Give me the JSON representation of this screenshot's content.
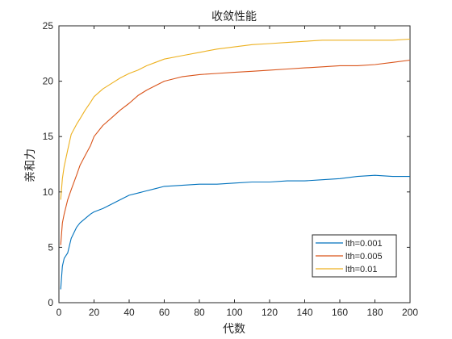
{
  "chart_data": {
    "type": "line",
    "title": "收敛性能",
    "xlabel": "代数",
    "ylabel": "亲和力",
    "xlim": [
      0,
      200
    ],
    "ylim": [
      0,
      25
    ],
    "xticks": [
      0,
      20,
      40,
      60,
      80,
      100,
      120,
      140,
      160,
      180,
      200
    ],
    "yticks": [
      0,
      5,
      10,
      15,
      20,
      25
    ],
    "grid": false,
    "legend_position": "bottom-right",
    "series": [
      {
        "name": "lth=0.001",
        "color": "#0072BD",
        "x": [
          1,
          2,
          3,
          5,
          7,
          10,
          12,
          15,
          18,
          20,
          25,
          30,
          35,
          40,
          45,
          50,
          55,
          60,
          70,
          80,
          90,
          100,
          110,
          120,
          130,
          140,
          150,
          160,
          170,
          180,
          190,
          200
        ],
        "y": [
          1.2,
          3.3,
          4.0,
          4.5,
          5.8,
          6.8,
          7.2,
          7.6,
          8.0,
          8.2,
          8.5,
          8.9,
          9.3,
          9.7,
          9.9,
          10.1,
          10.3,
          10.5,
          10.6,
          10.7,
          10.7,
          10.8,
          10.9,
          10.9,
          11.0,
          11.0,
          11.1,
          11.2,
          11.4,
          11.5,
          11.4,
          11.4
        ]
      },
      {
        "name": "lth=0.005",
        "color": "#D95319",
        "x": [
          1,
          2,
          3,
          5,
          7,
          10,
          12,
          15,
          18,
          20,
          25,
          30,
          35,
          40,
          45,
          50,
          55,
          60,
          70,
          80,
          90,
          100,
          110,
          120,
          130,
          140,
          150,
          160,
          170,
          180,
          190,
          200
        ],
        "y": [
          5.2,
          7.2,
          8.0,
          9.3,
          10.2,
          11.5,
          12.4,
          13.3,
          14.2,
          15.0,
          16.0,
          16.7,
          17.4,
          18.0,
          18.7,
          19.2,
          19.6,
          20.0,
          20.4,
          20.6,
          20.7,
          20.8,
          20.9,
          21.0,
          21.1,
          21.2,
          21.3,
          21.4,
          21.4,
          21.5,
          21.7,
          21.9
        ]
      },
      {
        "name": "lth=0.01",
        "color": "#EDB120",
        "x": [
          1,
          2,
          3,
          5,
          7,
          10,
          12,
          15,
          18,
          20,
          25,
          30,
          35,
          40,
          45,
          50,
          55,
          60,
          70,
          80,
          90,
          100,
          110,
          120,
          130,
          140,
          150,
          160,
          170,
          180,
          190,
          200
        ],
        "y": [
          9.3,
          11.2,
          12.3,
          13.8,
          15.2,
          16.1,
          16.6,
          17.4,
          18.1,
          18.6,
          19.3,
          19.8,
          20.3,
          20.7,
          21.0,
          21.4,
          21.7,
          22.0,
          22.3,
          22.6,
          22.9,
          23.1,
          23.3,
          23.4,
          23.5,
          23.6,
          23.7,
          23.7,
          23.7,
          23.7,
          23.7,
          23.8
        ]
      }
    ]
  }
}
